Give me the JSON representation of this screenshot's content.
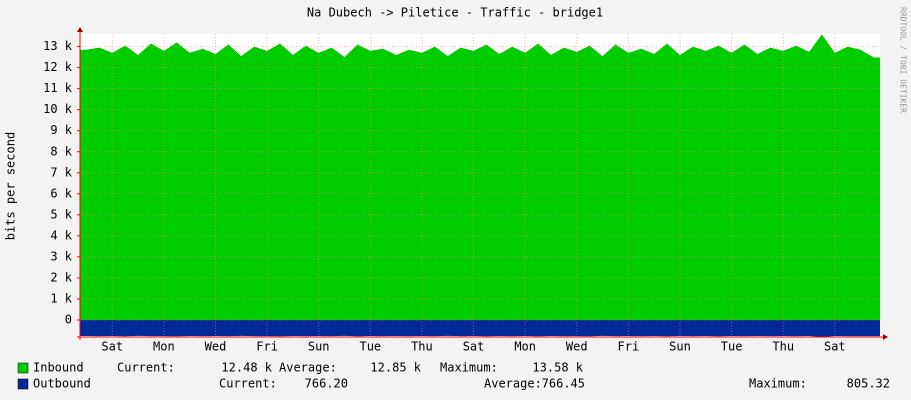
{
  "chart_data": {
    "type": "area",
    "title": "Na Dubech -> Piletice - Traffic - bridge1",
    "y_label": "bits per second",
    "side_text": "RRDTOOL / TOBI OETIKER",
    "xlim": [
      0,
      31
    ],
    "xticks": [
      {
        "value": 1.25,
        "label": "Sat"
      },
      {
        "value": 3.25,
        "label": "Mon"
      },
      {
        "value": 5.25,
        "label": "Wed"
      },
      {
        "value": 7.25,
        "label": "Fri"
      },
      {
        "value": 9.25,
        "label": "Sun"
      },
      {
        "value": 11.25,
        "label": "Tue"
      },
      {
        "value": 13.25,
        "label": "Thu"
      },
      {
        "value": 15.25,
        "label": "Sat"
      },
      {
        "value": 17.25,
        "label": "Mon"
      },
      {
        "value": 19.25,
        "label": "Wed"
      },
      {
        "value": 21.25,
        "label": "Fri"
      },
      {
        "value": 23.25,
        "label": "Sun"
      },
      {
        "value": 25.25,
        "label": "Tue"
      },
      {
        "value": 27.25,
        "label": "Thu"
      },
      {
        "value": 29.25,
        "label": "Sat"
      }
    ],
    "ylim": [
      -810,
      13600
    ],
    "yticks": [
      0,
      {
        "value": 1000,
        "label": "1 k"
      },
      {
        "value": 2000,
        "label": "2 k"
      },
      {
        "value": 3000,
        "label": "3 k"
      },
      {
        "value": 4000,
        "label": "4 k"
      },
      {
        "value": 5000,
        "label": "5 k"
      },
      {
        "value": 6000,
        "label": "6 k"
      },
      {
        "value": 7000,
        "label": "7 k"
      },
      {
        "value": 8000,
        "label": "8 k"
      },
      {
        "value": 9000,
        "label": "9 k"
      },
      {
        "value": 10000,
        "label": "10 k"
      },
      {
        "value": 11000,
        "label": "11 k"
      },
      {
        "value": 12000,
        "label": "12 k"
      },
      {
        "value": 13000,
        "label": "13 k"
      }
    ],
    "grid": true,
    "stat_labels": [
      "Current:",
      "Average:",
      "Maximum:"
    ],
    "x": [
      0.25,
      0.75,
      1.25,
      1.75,
      2.25,
      2.75,
      3.25,
      3.75,
      4.25,
      4.75,
      5.25,
      5.75,
      6.25,
      6.75,
      7.25,
      7.75,
      8.25,
      8.75,
      9.25,
      9.75,
      10.25,
      10.75,
      11.25,
      11.75,
      12.25,
      12.75,
      13.25,
      13.75,
      14.25,
      14.75,
      15.25,
      15.75,
      16.25,
      16.75,
      17.25,
      17.75,
      18.25,
      18.75,
      19.25,
      19.75,
      20.25,
      20.75,
      21.25,
      21.75,
      22.25,
      22.75,
      23.25,
      23.75,
      24.25,
      24.75,
      25.25,
      25.75,
      26.25,
      26.75,
      27.25,
      27.75,
      28.25,
      28.75,
      29.25,
      29.75,
      30.25,
      30.75
    ],
    "series": [
      {
        "name": "Inbound",
        "color": "#00cc00",
        "values": [
          12850,
          12950,
          12700,
          13050,
          12600,
          13150,
          12800,
          13200,
          12700,
          12900,
          12650,
          13100,
          12550,
          13000,
          12800,
          13150,
          12600,
          13050,
          12700,
          12950,
          12500,
          13100,
          12800,
          12900,
          12600,
          12850,
          12700,
          13000,
          12550,
          12950,
          12800,
          13100,
          12650,
          13000,
          12700,
          13150,
          12600,
          12950,
          12750,
          13050,
          12550,
          13100,
          12700,
          12900,
          12650,
          13150,
          12600,
          13000,
          12800,
          13050,
          12700,
          13100,
          12650,
          12950,
          12800,
          13050,
          12750,
          13580,
          12700,
          13000,
          12850,
          12480
        ],
        "stats": [
          12480,
          12850,
          13580
        ],
        "stats_labels": [
          "12.48 k",
          "12.85 k",
          "13.58 k"
        ]
      },
      {
        "name": "Outbound",
        "color": "#002a97",
        "inverted": true,
        "values": [
          765,
          770,
          762,
          772,
          758,
          768,
          766,
          775,
          760,
          769,
          764,
          771,
          757,
          767,
          766,
          774,
          761,
          768,
          763,
          770,
          756,
          772,
          765,
          769,
          760,
          766,
          764,
          771,
          758,
          768,
          765,
          773,
          762,
          770,
          764,
          775,
          760,
          769,
          766,
          772,
          759,
          771,
          763,
          768,
          762,
          774,
          760,
          770,
          765,
          772,
          763,
          771,
          761,
          768,
          765,
          770,
          764,
          805,
          762,
          769,
          766,
          766
        ],
        "stats": [
          766.2,
          766.45,
          805.32
        ],
        "stats_labels": [
          "766.20",
          "766.45",
          "805.32"
        ]
      }
    ]
  }
}
